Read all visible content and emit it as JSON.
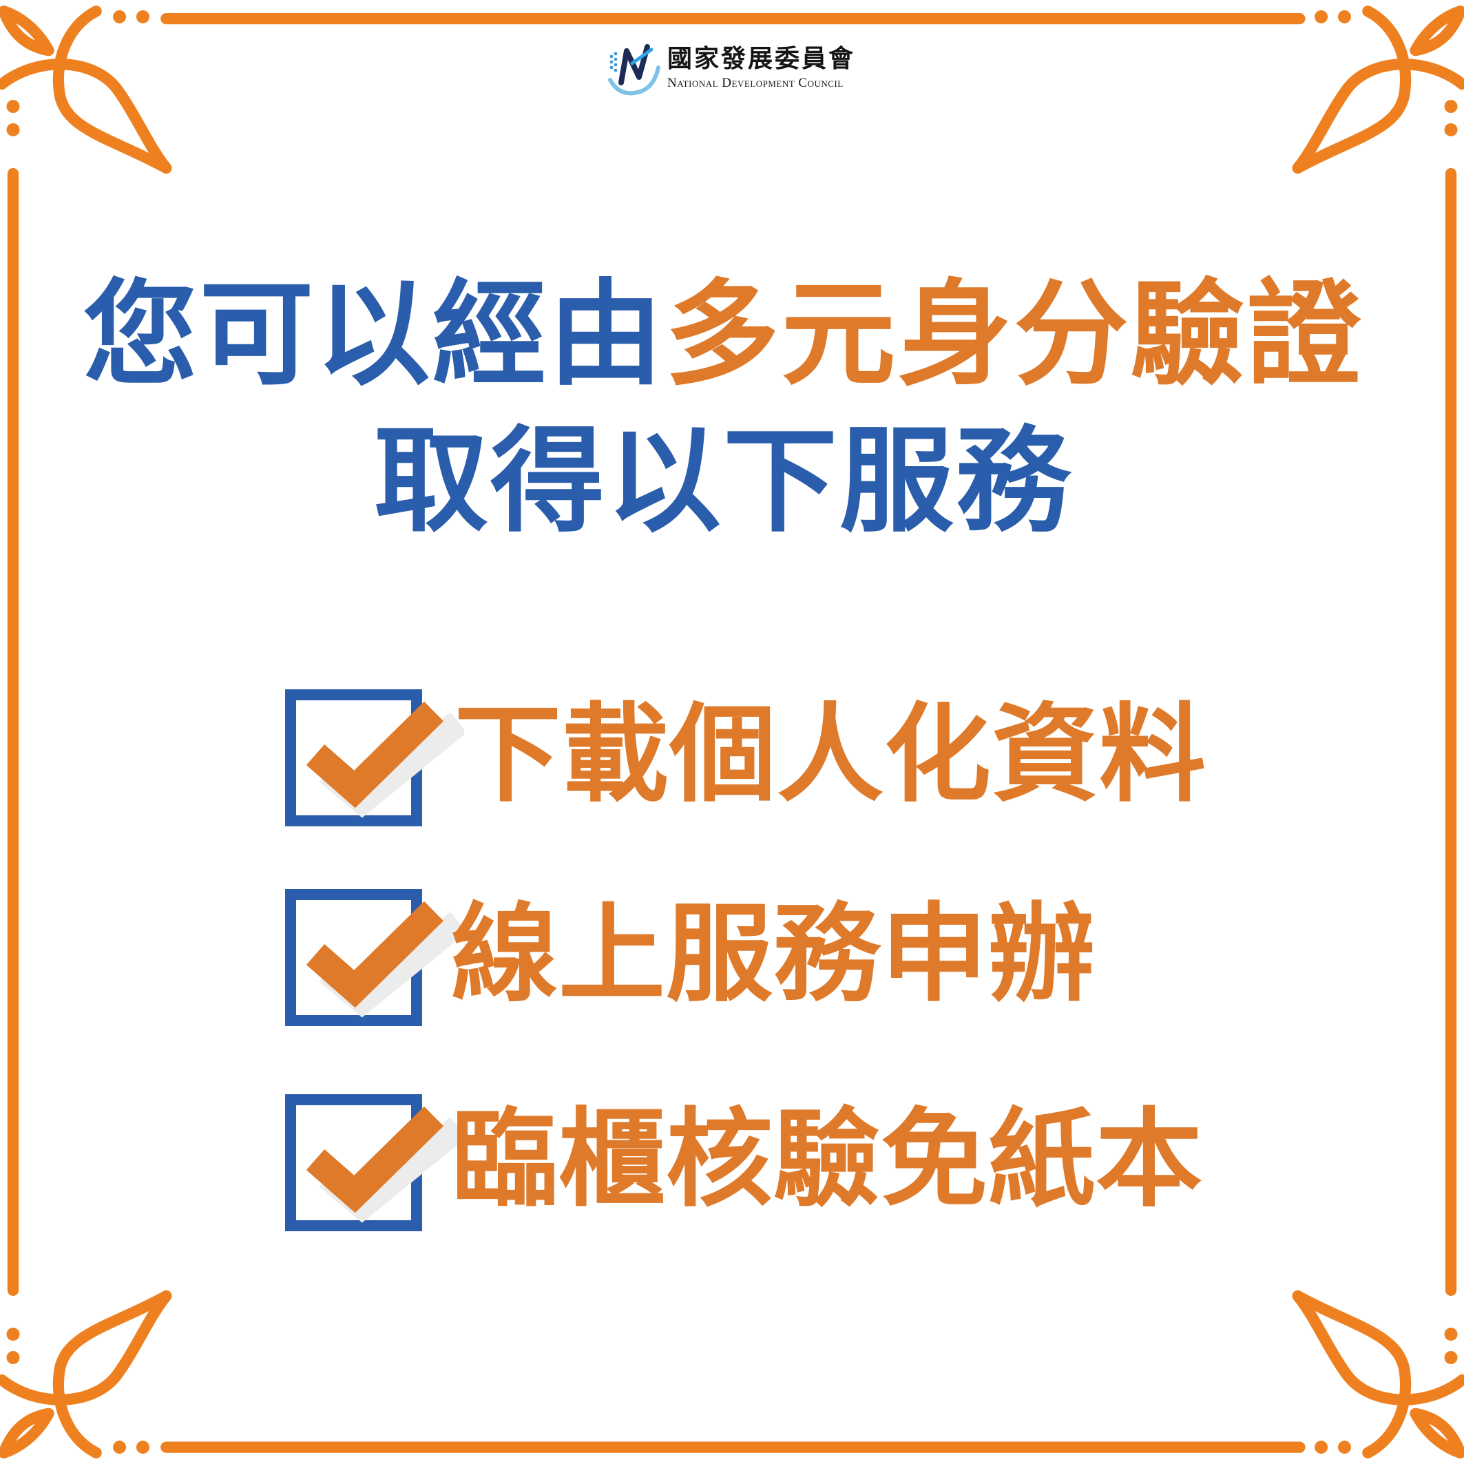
{
  "logo": {
    "name_zh": "國家發展委員會",
    "name_en": "National Development Council",
    "icon": "ndc-logo-icon"
  },
  "title": {
    "line1_blue": "您可以經由",
    "line1_orange": "多元身分驗證",
    "line2": "取得以下服務"
  },
  "checklist": {
    "items": [
      {
        "text": "下載個人化資料",
        "checked": true,
        "icon": "checkbox-checked-icon"
      },
      {
        "text": "線上服務申辦",
        "checked": true,
        "icon": "checkbox-checked-icon"
      },
      {
        "text": "臨櫃核驗免紙本",
        "checked": true,
        "icon": "checkbox-checked-icon"
      }
    ]
  },
  "decoration": {
    "frame_icon": "ornamental-frame",
    "corner_icon": "leaf-corner-ornament"
  },
  "colors": {
    "blue": "#2A5DAB",
    "orange": "#DE7A2A",
    "frame": "#EE801F",
    "shadow": "#ECECEC",
    "ink": "#151515"
  }
}
